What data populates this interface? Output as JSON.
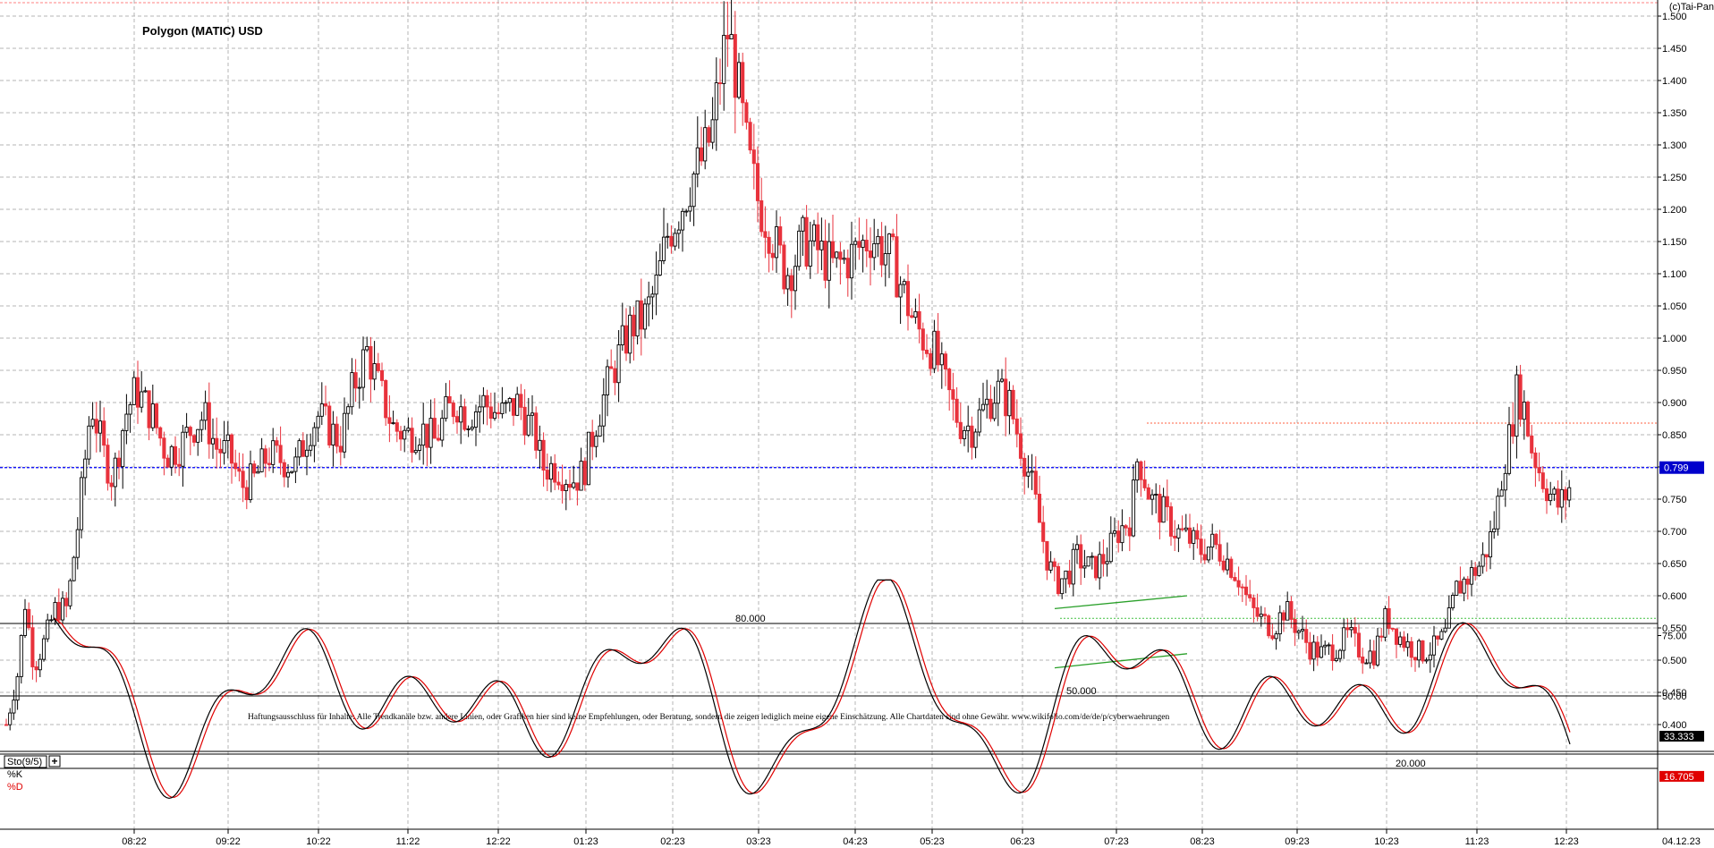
{
  "watermark": "(c)Tai-Pan",
  "chart_data": {
    "type": "candlestick",
    "title": "Polygon (MATIC) USD",
    "price_axis": {
      "ylim": [
        0.37,
        1.52
      ],
      "ticks": [
        "1.500",
        "1.450",
        "1.400",
        "1.350",
        "1.300",
        "1.250",
        "1.200",
        "1.150",
        "1.100",
        "1.050",
        "1.000",
        "0.950",
        "0.900",
        "0.850",
        "0.800",
        "0.750",
        "0.700",
        "0.650",
        "0.600",
        "0.550",
        "0.500",
        "0.450",
        "0.400"
      ],
      "tick_values": [
        1.5,
        1.45,
        1.4,
        1.35,
        1.3,
        1.25,
        1.2,
        1.15,
        1.1,
        1.05,
        1.0,
        0.95,
        0.9,
        0.85,
        0.8,
        0.75,
        0.7,
        0.65,
        0.6,
        0.55,
        0.5,
        0.45,
        0.4
      ],
      "current_price_label": "0.799",
      "current_price": 0.799
    },
    "x_axis": {
      "labels": [
        "08:22",
        "09:22",
        "10:22",
        "11:22",
        "12:22",
        "01:23",
        "02:23",
        "03:23",
        "04:23",
        "05:23",
        "06:23",
        "07:23",
        "08:23",
        "09:23",
        "10:23",
        "11:23",
        "12:23"
      ],
      "date_label": "04.12.23"
    },
    "levels": [
      {
        "name": "current-price-line",
        "value": 0.799,
        "color": "#0000ff"
      },
      {
        "name": "resistance-line",
        "value": 0.868,
        "color": "#ff6040"
      },
      {
        "name": "support-line",
        "value": 0.565,
        "color": "#40c040"
      }
    ],
    "trendlines": [
      {
        "name": "channel-upper",
        "from": [
          1179,
          0.58
        ],
        "to": [
          1327,
          0.6
        ]
      },
      {
        "name": "channel-lower",
        "from": [
          1179,
          0.488
        ],
        "to": [
          1327,
          0.51
        ]
      }
    ],
    "disclaimer": "Haftungsausschluss für Inhalte: Alle Trendkanäle bzw. andere Linien, oder Grafiken hier sind keine Empfehlungen, oder Beratung, sondern die zeigen lediglich meine eigene Einschätzung. Alle Chartdaten sind ohne Gewähr.  www.wikifolio.com/de/de/p/cyberwaehrungen",
    "stochastic": {
      "indicator_label": "Sto(9/5)",
      "k_label": "%K",
      "d_label": "%D",
      "k_color": "#000000",
      "d_color": "#e00000",
      "ylim": [
        0,
        100
      ],
      "axis_ticks": [
        "75.00",
        "50.00"
      ],
      "axis_tick_values": [
        75,
        50
      ],
      "levels": [
        {
          "value": 80,
          "label": "80.000"
        },
        {
          "value": 50,
          "label": "50.000"
        },
        {
          "value": 20,
          "label": "20.000"
        }
      ],
      "k_value_label": "33.333",
      "k_value": 33.333,
      "d_value_label": "16.705",
      "d_value": 16.705
    }
  },
  "colors": {
    "up": "#000000",
    "down": "#e8323c",
    "grid": "#b4b4b4"
  }
}
